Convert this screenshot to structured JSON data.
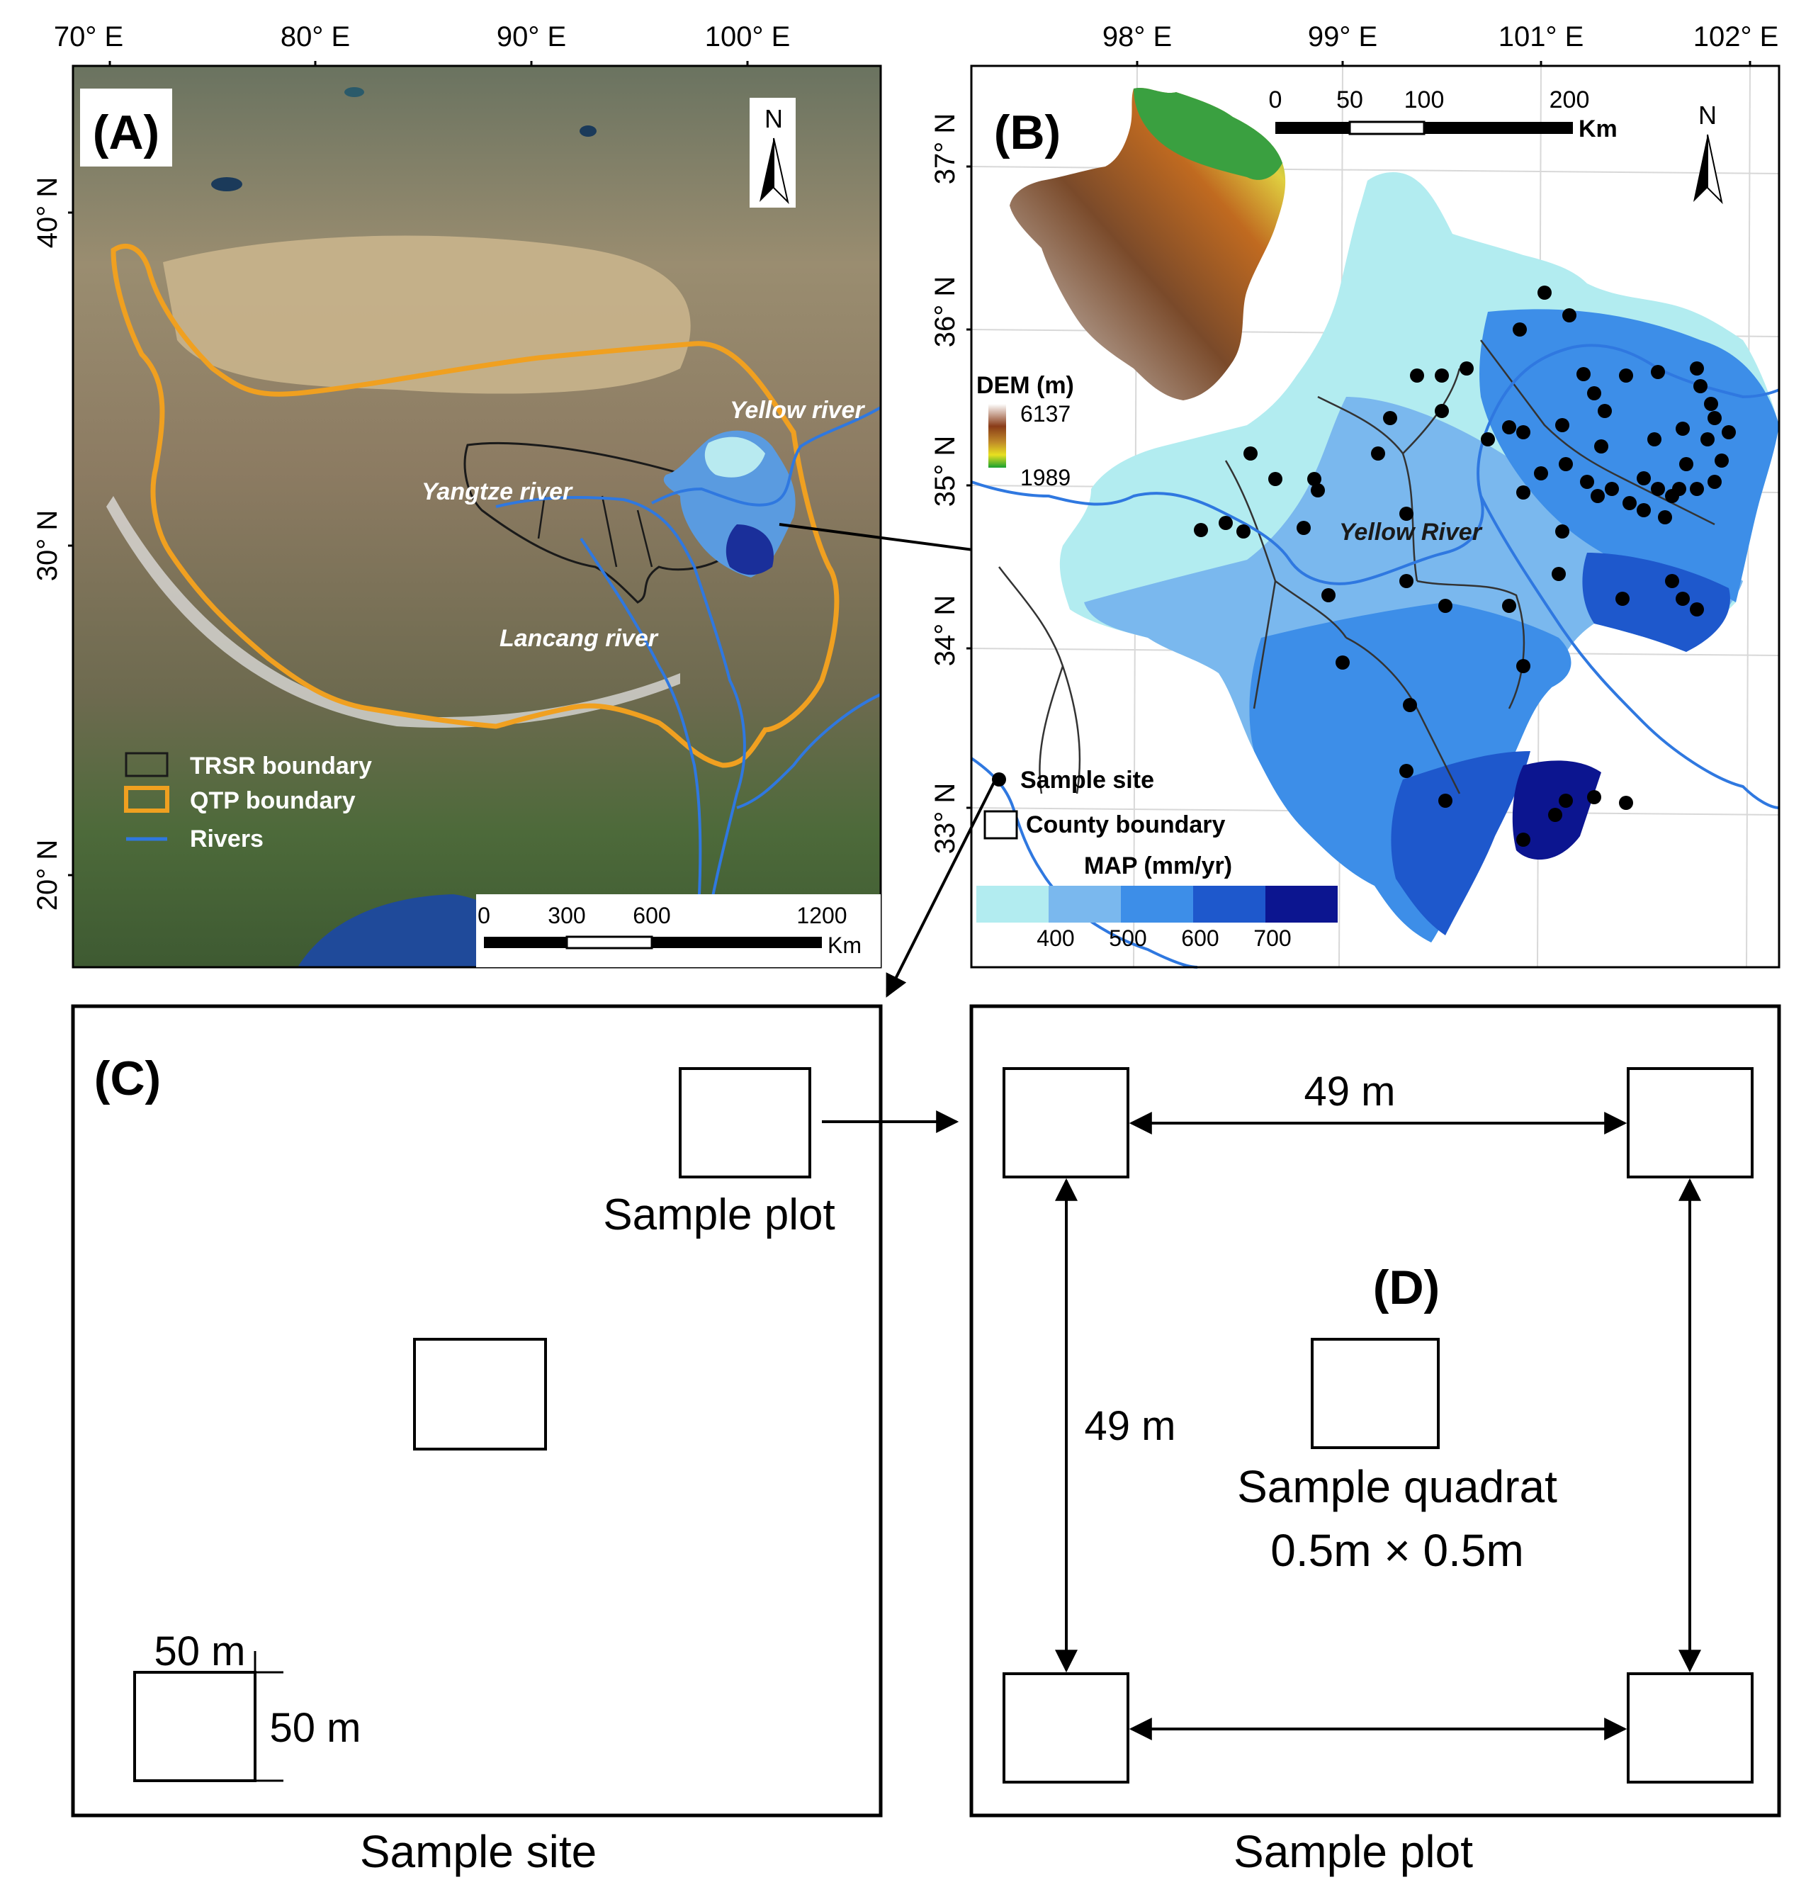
{
  "panel_a": {
    "label": "(A)",
    "lon_ticks": [
      "70° E",
      "80° E",
      "90° E",
      "100° E"
    ],
    "lat_ticks": [
      "40° N",
      "30° N",
      "20° N"
    ],
    "north_label": "N",
    "rivers": {
      "yellow": "Yellow river",
      "yangtze": "Yangtze river",
      "lancang": "Lancang river"
    },
    "legend": {
      "trsr": "TRSR boundary",
      "qtp": "QTP boundary",
      "rivers": "Rivers"
    },
    "scale": {
      "ticks": [
        "0",
        "300",
        "600",
        "1200"
      ],
      "unit": "Km"
    },
    "colors": {
      "qtp_boundary": "#f0a020",
      "river": "#2f78e0",
      "trsr_boundary": "#1a1a1a"
    }
  },
  "panel_b": {
    "label": "(B)",
    "lon_ticks": [
      "98° E",
      "99° E",
      "101° E",
      "102° E"
    ],
    "lat_ticks": [
      "37° N",
      "36° N",
      "35° N",
      "34° N",
      "33° N"
    ],
    "north_label": "N",
    "scale": {
      "ticks": [
        "0",
        "50",
        "100",
        "200"
      ],
      "unit": "Km"
    },
    "dem": {
      "title": "DEM (m)",
      "max": "6137",
      "min": "1989"
    },
    "river_label": "Yellow River",
    "legend": {
      "site": "Sample site",
      "county": "County boundary"
    },
    "map": {
      "title": "MAP (mm/yr)",
      "ticks": [
        "400",
        "500",
        "600",
        "700"
      ],
      "colors": [
        "#b2ecf0",
        "#7ab8ee",
        "#3d8ee8",
        "#1e58cc",
        "#0c1590"
      ]
    }
  },
  "panel_c": {
    "label": "(C)",
    "plot_label": "Sample plot",
    "dim_top": "50 m",
    "dim_right": "50 m",
    "caption": "Sample site"
  },
  "panel_d": {
    "label": "(D)",
    "dist_horizontal": "49 m",
    "dist_vertical": "49 m",
    "quadrat_label": "Sample quadrat",
    "quadrat_size": "0.5m × 0.5m",
    "caption": "Sample plot"
  }
}
